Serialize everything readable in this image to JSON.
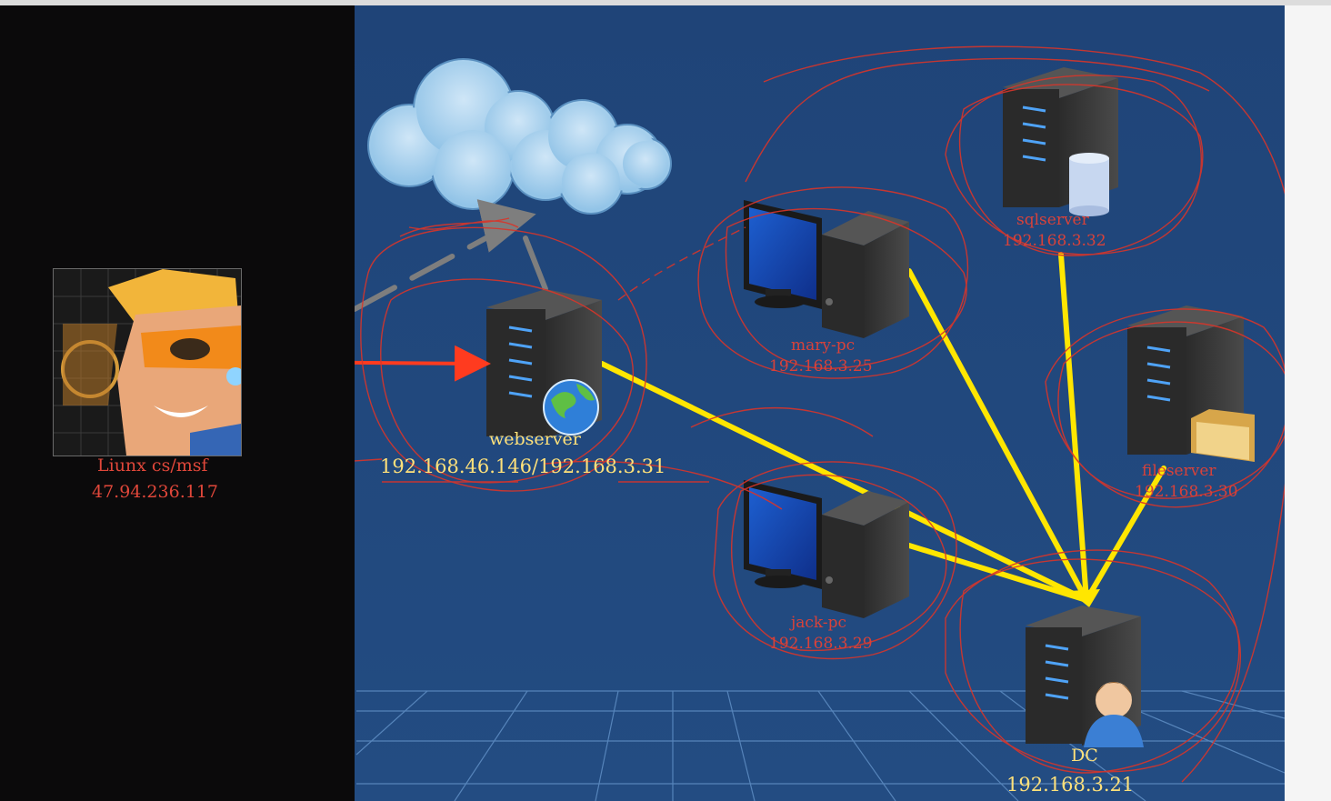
{
  "attacker": {
    "name": "Liunx cs/msf",
    "ip": "47.94.236.117"
  },
  "nodes": {
    "webserver": {
      "name": "webserver",
      "ip": "192.168.46.146/192.168.3.31"
    },
    "mary_pc": {
      "name": "mary-pc",
      "ip": "192.168.3.25"
    },
    "jack_pc": {
      "name": "jack-pc",
      "ip": "192.168.3.29"
    },
    "sqlserver": {
      "name": "sqlserver",
      "ip": "192.168.3.32"
    },
    "fileserver": {
      "name": "fileserver",
      "ip": "192.168.3.30"
    },
    "dc": {
      "name": "DC",
      "ip": "192.168.3.21"
    }
  },
  "colors": {
    "background": "#21497c",
    "left_panel": "#0b0a0b",
    "attack_arrow": "#ff3b1f",
    "domain_links": "#ffe600",
    "annotation": "#d8352a"
  }
}
